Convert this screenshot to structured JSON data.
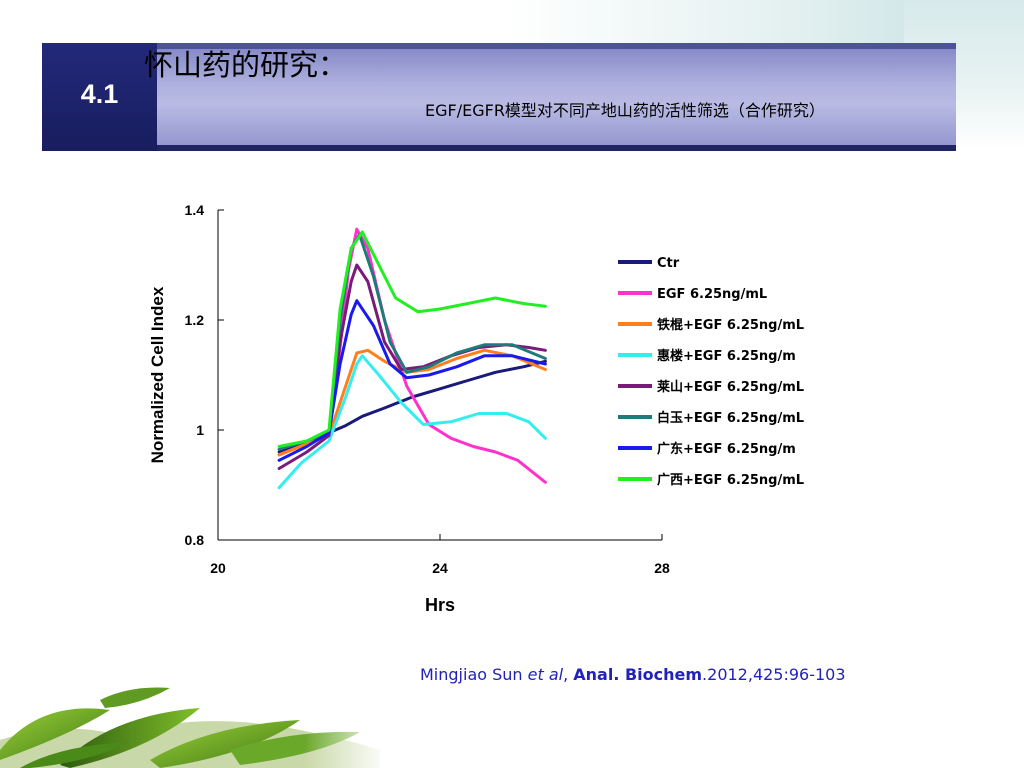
{
  "slide": {
    "number": "4.1",
    "title_main": "怀山药的研究：",
    "title_sub": "EGF/EGFR模型对不同产地山药的活性筛选（合作研究）"
  },
  "citation": {
    "author": "Mingjiao Sun ",
    "etal": "et al",
    "comma": ", ",
    "journal": "Anal. Biochem",
    "details": ".2012,425:96-103"
  },
  "chart_data": {
    "type": "line",
    "xlabel": "Hrs",
    "ylabel": "Normalized Cell Index",
    "xlim": [
      20,
      28
    ],
    "ylim": [
      0.8,
      1.4
    ],
    "xticks": [
      "20",
      "24",
      "28"
    ],
    "yticks": [
      "0.8",
      "1",
      "1.2",
      "1.4"
    ],
    "legend_position": "right",
    "series": [
      {
        "name": "Ctr",
        "color": "#1a1a7a",
        "points": [
          [
            21.1,
            0.96
          ],
          [
            21.5,
            0.975
          ],
          [
            22.0,
            0.995
          ],
          [
            22.3,
            1.008
          ],
          [
            22.6,
            1.025
          ],
          [
            23.0,
            1.04
          ],
          [
            23.5,
            1.06
          ],
          [
            24.0,
            1.075
          ],
          [
            24.5,
            1.09
          ],
          [
            25.0,
            1.105
          ],
          [
            25.5,
            1.115
          ],
          [
            25.9,
            1.125
          ]
        ]
      },
      {
        "name": "EGF 6.25ng/mL",
        "color": "#ff33cc",
        "points": [
          [
            21.1,
            0.955
          ],
          [
            21.6,
            0.975
          ],
          [
            22.0,
            0.995
          ],
          [
            22.2,
            1.15
          ],
          [
            22.35,
            1.29
          ],
          [
            22.5,
            1.365
          ],
          [
            22.7,
            1.33
          ],
          [
            23.0,
            1.2
          ],
          [
            23.4,
            1.08
          ],
          [
            23.8,
            1.01
          ],
          [
            24.2,
            0.985
          ],
          [
            24.6,
            0.97
          ],
          [
            25.0,
            0.96
          ],
          [
            25.4,
            0.945
          ],
          [
            25.9,
            0.905
          ]
        ]
      },
      {
        "name": "铁棍+EGF 6.25ng/mL",
        "color": "#ff7f1e",
        "points": [
          [
            21.1,
            0.955
          ],
          [
            21.6,
            0.975
          ],
          [
            22.0,
            0.99
          ],
          [
            22.3,
            1.08
          ],
          [
            22.5,
            1.14
          ],
          [
            22.7,
            1.145
          ],
          [
            23.0,
            1.125
          ],
          [
            23.4,
            1.105
          ],
          [
            23.8,
            1.11
          ],
          [
            24.3,
            1.13
          ],
          [
            24.8,
            1.145
          ],
          [
            25.3,
            1.135
          ],
          [
            25.9,
            1.11
          ]
        ]
      },
      {
        "name": "惠楼+EGF 6.25ng/m",
        "color": "#33eeee",
        "points": [
          [
            21.1,
            0.895
          ],
          [
            21.5,
            0.94
          ],
          [
            22.0,
            0.98
          ],
          [
            22.3,
            1.06
          ],
          [
            22.5,
            1.12
          ],
          [
            22.6,
            1.135
          ],
          [
            22.9,
            1.1
          ],
          [
            23.3,
            1.05
          ],
          [
            23.7,
            1.01
          ],
          [
            24.2,
            1.015
          ],
          [
            24.7,
            1.03
          ],
          [
            25.2,
            1.03
          ],
          [
            25.6,
            1.015
          ],
          [
            25.9,
            0.985
          ]
        ]
      },
      {
        "name": "莱山+EGF 6.25ng/mL",
        "color": "#7a1a7a",
        "points": [
          [
            21.1,
            0.93
          ],
          [
            21.6,
            0.96
          ],
          [
            22.0,
            0.99
          ],
          [
            22.2,
            1.16
          ],
          [
            22.4,
            1.27
          ],
          [
            22.5,
            1.3
          ],
          [
            22.7,
            1.27
          ],
          [
            23.0,
            1.16
          ],
          [
            23.3,
            1.11
          ],
          [
            23.7,
            1.115
          ],
          [
            24.2,
            1.135
          ],
          [
            24.7,
            1.15
          ],
          [
            25.2,
            1.155
          ],
          [
            25.6,
            1.15
          ],
          [
            25.9,
            1.145
          ]
        ]
      },
      {
        "name": "白玉+EGF 6.25ng/mL",
        "color": "#1f7a7a",
        "points": [
          [
            21.1,
            0.965
          ],
          [
            21.6,
            0.98
          ],
          [
            22.0,
            0.995
          ],
          [
            22.2,
            1.2
          ],
          [
            22.4,
            1.33
          ],
          [
            22.55,
            1.355
          ],
          [
            22.8,
            1.28
          ],
          [
            23.1,
            1.16
          ],
          [
            23.4,
            1.105
          ],
          [
            23.8,
            1.115
          ],
          [
            24.3,
            1.14
          ],
          [
            24.8,
            1.155
          ],
          [
            25.3,
            1.155
          ],
          [
            25.9,
            1.13
          ]
        ]
      },
      {
        "name": "广东+EGF 6.25ng/m",
        "color": "#1a1aee",
        "points": [
          [
            21.1,
            0.945
          ],
          [
            21.6,
            0.97
          ],
          [
            22.0,
            0.995
          ],
          [
            22.2,
            1.12
          ],
          [
            22.4,
            1.21
          ],
          [
            22.5,
            1.235
          ],
          [
            22.8,
            1.19
          ],
          [
            23.1,
            1.12
          ],
          [
            23.4,
            1.095
          ],
          [
            23.8,
            1.1
          ],
          [
            24.3,
            1.115
          ],
          [
            24.8,
            1.135
          ],
          [
            25.3,
            1.135
          ],
          [
            25.9,
            1.12
          ]
        ]
      },
      {
        "name": "广西+EGF 6.25ng/mL",
        "color": "#22ee22",
        "points": [
          [
            21.1,
            0.97
          ],
          [
            21.6,
            0.98
          ],
          [
            22.0,
            1.0
          ],
          [
            22.2,
            1.22
          ],
          [
            22.4,
            1.33
          ],
          [
            22.6,
            1.36
          ],
          [
            22.9,
            1.3
          ],
          [
            23.2,
            1.24
          ],
          [
            23.6,
            1.215
          ],
          [
            24.0,
            1.22
          ],
          [
            24.5,
            1.23
          ],
          [
            25.0,
            1.24
          ],
          [
            25.5,
            1.23
          ],
          [
            25.9,
            1.225
          ]
        ]
      }
    ]
  }
}
